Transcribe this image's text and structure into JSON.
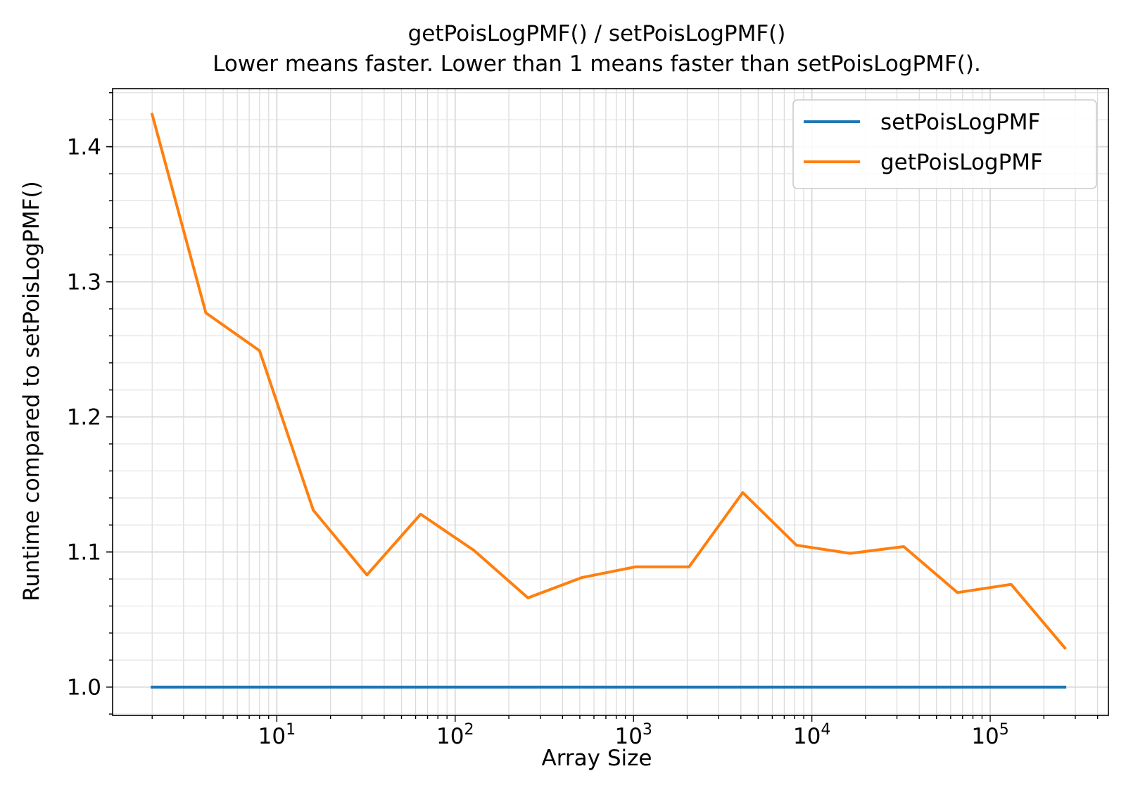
{
  "chart_data": {
    "type": "line",
    "title": "getPoisLogPMF() / setPoisLogPMF()",
    "subtitle": "Lower means faster. Lower than 1 means faster than setPoisLogPMF().",
    "xlabel": "Array Size",
    "ylabel": "Runtime compared to setPoisLogPMF()",
    "xscale": "log",
    "xlim": [
      1.2,
      460000
    ],
    "ylim": [
      0.979,
      1.443
    ],
    "grid": true,
    "legend_position": "top-right",
    "x_ticks": [
      {
        "value": 10,
        "base": "10",
        "exp": "1"
      },
      {
        "value": 100,
        "base": "10",
        "exp": "2"
      },
      {
        "value": 1000,
        "base": "10",
        "exp": "3"
      },
      {
        "value": 10000,
        "base": "10",
        "exp": "4"
      },
      {
        "value": 100000,
        "base": "10",
        "exp": "5"
      }
    ],
    "y_ticks": [
      {
        "value": 1.0,
        "label": "1.0"
      },
      {
        "value": 1.1,
        "label": "1.1"
      },
      {
        "value": 1.2,
        "label": "1.2"
      },
      {
        "value": 1.3,
        "label": "1.3"
      },
      {
        "value": 1.4,
        "label": "1.4"
      }
    ],
    "x": [
      2,
      4,
      8,
      16,
      32,
      64,
      128,
      256,
      512,
      1024,
      2048,
      4096,
      8192,
      16384,
      32768,
      65536,
      131072,
      262144
    ],
    "series": [
      {
        "name": "setPoisLogPMF",
        "color": "#1f77b4",
        "values": [
          1,
          1,
          1,
          1,
          1,
          1,
          1,
          1,
          1,
          1,
          1,
          1,
          1,
          1,
          1,
          1,
          1,
          1
        ]
      },
      {
        "name": "getPoisLogPMF",
        "color": "#ff7f0e",
        "values": [
          1.424,
          1.277,
          1.249,
          1.131,
          1.083,
          1.128,
          1.101,
          1.066,
          1.081,
          1.089,
          1.089,
          1.144,
          1.105,
          1.099,
          1.104,
          1.07,
          1.076,
          1.029
        ]
      }
    ]
  }
}
